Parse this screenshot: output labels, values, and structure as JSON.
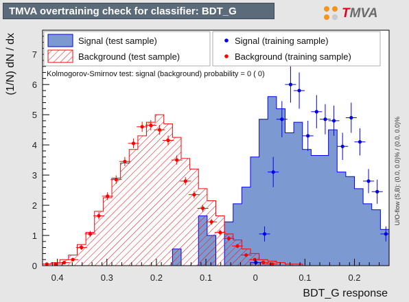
{
  "title": "TMVA overtraining check for classifier: BDT_G",
  "logo": {
    "t": "T",
    "rest": "MVA"
  },
  "colors": {
    "background": "#e6e6e6",
    "plot_bg": "#ffffff",
    "signal_fill": "#7d99d1",
    "signal_line": "#0000ee",
    "background_hatch": "#ff0000",
    "training_signal_marker": "#0000ee",
    "training_background_marker": "#ff0000",
    "title_bg": "#5c6b7a"
  },
  "chart_data": {
    "type": "histogram",
    "xlabel": "BDT_G response",
    "ylabel": "(1/N) dN / dx",
    "x_axis_reversed": true,
    "xlim": [
      -0.27,
      0.43
    ],
    "ylim": [
      0,
      7.8
    ],
    "x_ticks": [
      0.4,
      0.3,
      0.2,
      0.1,
      0,
      -0.1,
      -0.2
    ],
    "x_tick_labels": [
      "0.4",
      "0.3",
      "0.2",
      "0.1",
      "0",
      "0.1",
      "0.2"
    ],
    "y_ticks": [
      0,
      1,
      2,
      3,
      4,
      5,
      6,
      7
    ],
    "annotation": "Kolmogorov-Smirnov test: signal (background) probability =     0 (    0)",
    "overflow_note": "U/O-flow (S,B): (0.0, 0.0)% / (0.0, 0.0)%",
    "bin_edges": [
      0.43,
      0.4125,
      0.395,
      0.3775,
      0.36,
      0.3425,
      0.325,
      0.3075,
      0.29,
      0.2725,
      0.255,
      0.2375,
      0.22,
      0.2025,
      0.185,
      0.1675,
      0.15,
      0.1325,
      0.115,
      0.0975,
      0.08,
      0.0625,
      0.045,
      0.0275,
      0.01,
      -0.0075,
      -0.025,
      -0.0425,
      -0.06,
      -0.0775,
      -0.095,
      -0.1125,
      -0.13,
      -0.1475,
      -0.165,
      -0.1825,
      -0.2,
      -0.2175,
      -0.235,
      -0.2525,
      -0.27
    ],
    "series": [
      {
        "name": "Signal (test sample)",
        "style": "filled",
        "values": [
          0,
          0,
          0,
          0,
          0,
          0,
          0,
          0,
          0,
          0,
          0,
          0,
          0,
          0,
          0,
          0.55,
          0,
          0,
          1.65,
          1,
          0,
          1.45,
          2.05,
          2.6,
          3.6,
          4.85,
          5.6,
          5.2,
          4.4,
          4.75,
          3.85,
          3.65,
          3.65,
          4.5,
          3.1,
          2.95,
          2.55,
          2.05,
          1.85,
          1.2
        ]
      },
      {
        "name": "Background (test sample)",
        "style": "hatched",
        "values": [
          0.05,
          0.1,
          0.2,
          0.35,
          0.7,
          1.1,
          1.8,
          2.25,
          2.9,
          3.4,
          3.85,
          4.3,
          4.75,
          5,
          4.7,
          4.25,
          3.55,
          3.2,
          2.55,
          2.15,
          1.65,
          1.05,
          0.85,
          0.55,
          0.4,
          0.2,
          0.15,
          0.1,
          0.05,
          0.05,
          0,
          0,
          0,
          0,
          0,
          0,
          0,
          0,
          0,
          0
        ]
      },
      {
        "name": "Signal (training sample)",
        "style": "markers",
        "x": [
          -0.001,
          -0.0185,
          -0.036,
          -0.0535,
          -0.071,
          -0.0885,
          -0.106,
          -0.1235,
          -0.141,
          -0.1585,
          -0.176,
          -0.1935,
          -0.211,
          -0.2285,
          -0.246,
          -0.2635
        ],
        "y": [
          0.1,
          1.05,
          3.1,
          4.85,
          6,
          5.8,
          4.3,
          5.1,
          4.85,
          4.8,
          3.95,
          4.9,
          4.1,
          2.8,
          2.45,
          1.05
        ],
        "yerr": [
          0.07,
          0.25,
          0.5,
          0.6,
          0.6,
          0.6,
          0.5,
          0.55,
          0.5,
          0.5,
          0.45,
          0.5,
          0.45,
          0.4,
          0.4,
          0.25
        ]
      },
      {
        "name": "Background (training sample)",
        "style": "markers",
        "x": [
          0.4213,
          0.4038,
          0.3863,
          0.3688,
          0.3513,
          0.3338,
          0.3163,
          0.2988,
          0.2813,
          0.2638,
          0.2463,
          0.2288,
          0.2113,
          0.1938,
          0.1763,
          0.1588,
          0.1413,
          0.1238,
          0.1063,
          0.0888,
          0.0713,
          0.0538,
          0.0363,
          0.0188,
          0.0013,
          -0.0163,
          -0.0338
        ],
        "y": [
          0.05,
          0.05,
          0.1,
          0.2,
          0.6,
          1.05,
          1.65,
          2.3,
          2.85,
          3.45,
          4.05,
          4.6,
          4.65,
          4.5,
          4.15,
          3.5,
          2.8,
          2.35,
          1.9,
          1.45,
          1.1,
          0.9,
          0.65,
          0.35,
          0.2,
          0.1,
          0.05
        ],
        "yerr": [
          0.03,
          0.03,
          0.05,
          0.06,
          0.08,
          0.1,
          0.12,
          0.13,
          0.14,
          0.15,
          0.16,
          0.17,
          0.17,
          0.16,
          0.16,
          0.15,
          0.13,
          0.12,
          0.11,
          0.1,
          0.09,
          0.08,
          0.07,
          0.05,
          0.04,
          0.03,
          0.02
        ]
      }
    ],
    "legend": [
      {
        "label": "Signal (test sample)",
        "symbol": "signal-fill"
      },
      {
        "label": "Signal (training sample)",
        "symbol": "signal-marker"
      },
      {
        "label": "Background (test sample)",
        "symbol": "background-hatch"
      },
      {
        "label": "Background (training sample)",
        "symbol": "background-marker"
      }
    ]
  }
}
